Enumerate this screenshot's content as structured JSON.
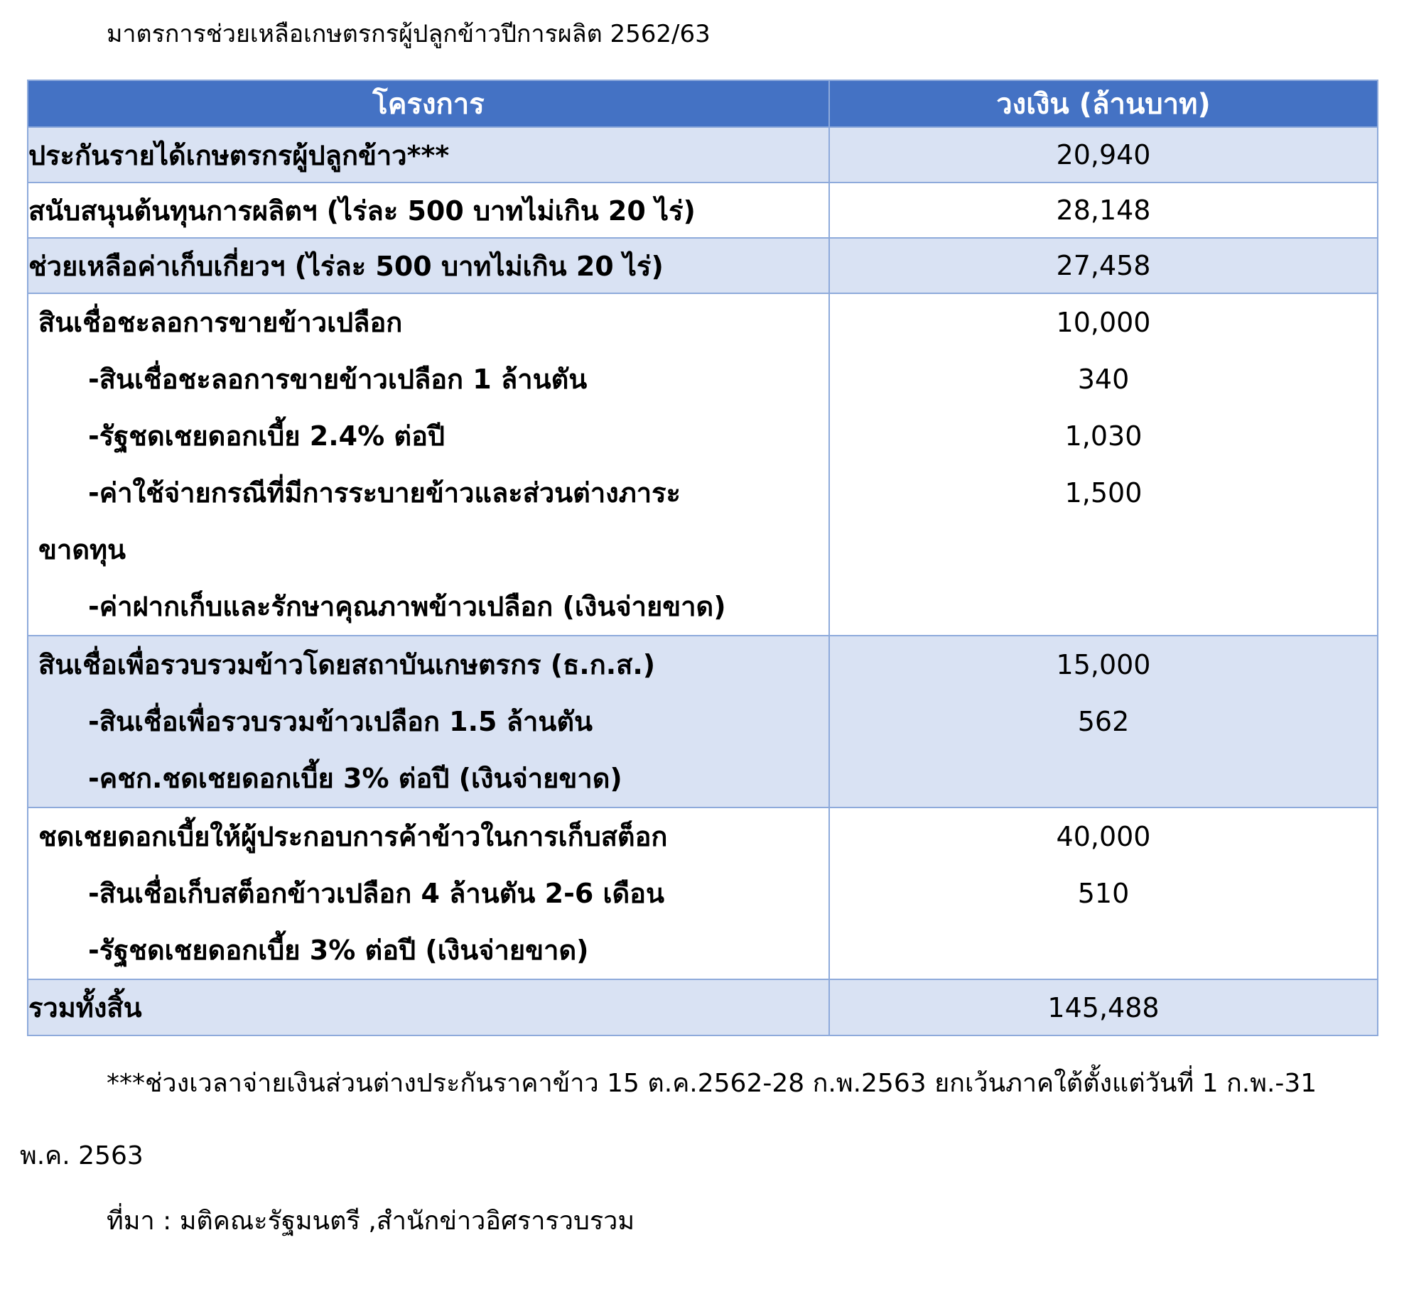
{
  "title": "มาตรการช่วยเหลือเกษตรกรผู้ปลูกข้าวปีการผลิต 2562/63",
  "table": {
    "header": {
      "project": "โครงการ",
      "budget": "วงเงิน (ล้านบาท)"
    },
    "rows": [
      {
        "label": "ประกันรายได้เกษตรกรผู้ปลูกข้าว***",
        "value": "20,940"
      },
      {
        "label": "สนับสนุนต้นทุนการผลิตฯ (ไร่ละ 500 บาทไม่เกิน 20 ไร่)",
        "value": "28,148"
      },
      {
        "label": "ช่วยเหลือค่าเก็บเกี่ยวฯ (ไร่ละ 500 บาทไม่เกิน 20 ไร่)",
        "value": "27,458"
      },
      {
        "label": "สินเชื่อชะลอการขายข้าวเปลือก",
        "sub1": "-สินเชื่อชะลอการขายข้าวเปลือก 1 ล้านตัน",
        "sub2": "-รัฐชดเชยดอกเบี้ย 2.4% ต่อปี",
        "sub3": "-ค่าใช้จ่ายกรณีที่มีการระบายข้าวและส่วนต่างภาระ",
        "sub3_cont": "ขาดทุน",
        "sub4": "-ค่าฝากเก็บและรักษาคุณภาพข้าวเปลือก (เงินจ่ายขาด)",
        "value1": "10,000",
        "value2": "340",
        "value3": "1,030",
        "value4": "1,500"
      },
      {
        "label": "สินเชื่อเพื่อรวบรวมข้าวโดยสถาบันเกษตรกร (ธ.ก.ส.)",
        "sub1": "-สินเชื่อเพื่อรวบรวมข้าวเปลือก 1.5 ล้านตัน",
        "sub2": "-คชก.ชดเชยดอกเบี้ย 3% ต่อปี (เงินจ่ายขาด)",
        "value1": "15,000",
        "value2": "562"
      },
      {
        "label": "ชดเชยดอกเบี้ยให้ผู้ประกอบการค้าข้าวในการเก็บสต็อก",
        "sub1": "-สินเชื่อเก็บสต็อกข้าวเปลือก 4 ล้านตัน 2-6 เดือน",
        "sub2": "-รัฐชดเชยดอกเบี้ย 3% ต่อปี (เงินจ่ายขาด)",
        "value1": "40,000",
        "value2": "510"
      }
    ],
    "total": {
      "label": "รวมทั้งสิ้น",
      "value": "145,488"
    }
  },
  "footnote": {
    "line1": "***ช่วงเวลาจ่ายเงินส่วนต่างประกันราคาข้าว 15 ต.ค.2562-28 ก.พ.2563 ยกเว้นภาคใต้ตั้งแต่วันที่ 1 ก.พ.-31",
    "line2": "พ.ค. 2563"
  },
  "source": "ที่มา : มติคณะรัฐมนตรี ,สำนักข่าวอิศรารวบรวม",
  "colors": {
    "header_bg": "#4472C4",
    "header_text": "#FFFFFF",
    "shade_bg": "#D9E2F3",
    "border": "#8EAADB"
  }
}
